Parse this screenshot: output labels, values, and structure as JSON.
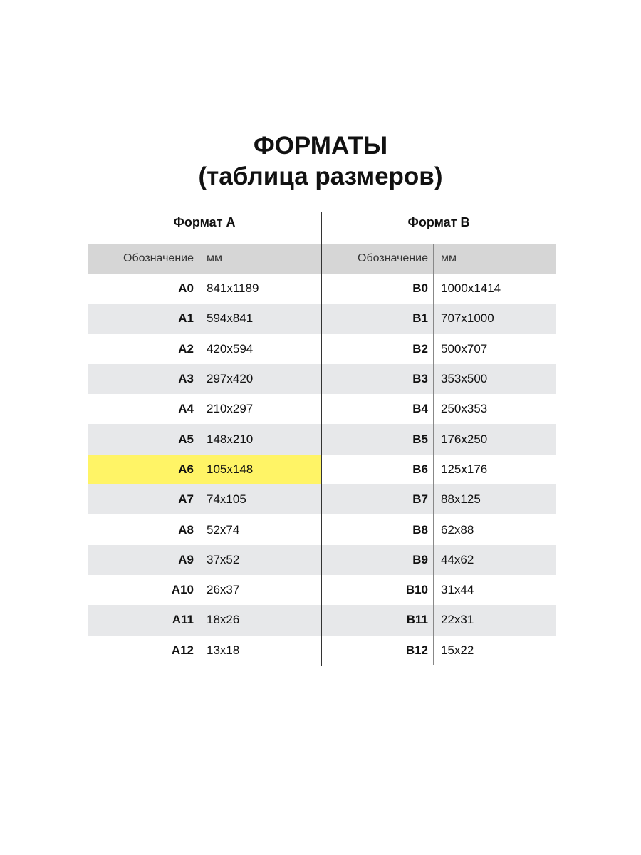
{
  "title_line1": "ФОРМАТЫ",
  "title_line2": "(таблица размеров)",
  "tables": [
    {
      "caption": "Формат A",
      "col_headers": [
        "Обозначение",
        "мм"
      ],
      "highlight_color": "#fff466",
      "rows": [
        [
          "A0",
          "841x1189"
        ],
        [
          "A1",
          "594x841"
        ],
        [
          "A2",
          "420x594"
        ],
        [
          "A3",
          "297x420"
        ],
        [
          "A4",
          "210x297"
        ],
        [
          "A5",
          "148x210"
        ],
        [
          "A6",
          "105x148"
        ],
        [
          "A7",
          "74x105"
        ],
        [
          "A8",
          "52x74"
        ],
        [
          "A9",
          "37x52"
        ],
        [
          "A10",
          "26x37"
        ],
        [
          "A11",
          "18x26"
        ],
        [
          "A12",
          "13x18"
        ]
      ],
      "highlighted_row": "A6"
    },
    {
      "caption": "Формат B",
      "col_headers": [
        "Обозначение",
        "мм"
      ],
      "rows": [
        [
          "B0",
          "1000x1414"
        ],
        [
          "B1",
          "707x1000"
        ],
        [
          "B2",
          "500x707"
        ],
        [
          "B3",
          "353x500"
        ],
        [
          "B4",
          "250x353"
        ],
        [
          "B5",
          "176x250"
        ],
        [
          "B6",
          "125x176"
        ],
        [
          "B7",
          "88x125"
        ],
        [
          "B8",
          "62x88"
        ],
        [
          "B9",
          "44x62"
        ],
        [
          "B10",
          "31x44"
        ],
        [
          "B11",
          "22x31"
        ],
        [
          "B12",
          "15x22"
        ]
      ],
      "highlighted_row": null
    }
  ]
}
